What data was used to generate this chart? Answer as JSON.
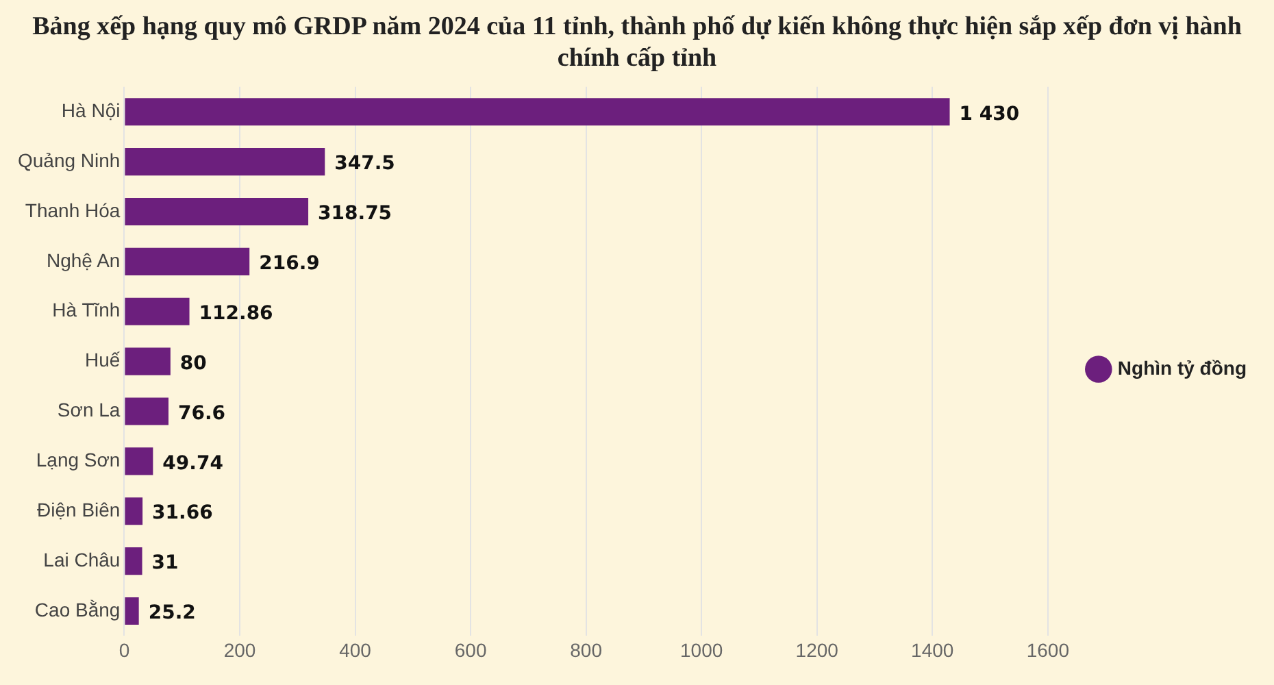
{
  "chart_data": {
    "type": "bar",
    "orientation": "horizontal",
    "title": "Bảng xếp hạng quy mô GRDP năm 2024 của 11 tỉnh, thành phố dự kiến không thực hiện sắp xếp đơn vị hành chính cấp tỉnh",
    "categories": [
      "Hà Nội",
      "Quảng Ninh",
      "Thanh Hóa",
      "Nghệ An",
      "Hà Tĩnh",
      "Huế",
      "Sơn La",
      "Lạng Sơn",
      "Điện Biên",
      "Lai Châu",
      "Cao Bằng"
    ],
    "series": [
      {
        "name": "Nghìn tỷ đồng",
        "color": "#6c1f7d",
        "values": [
          1430,
          347.5,
          318.75,
          216.9,
          112.86,
          80,
          76.6,
          49.74,
          31.66,
          31,
          25.2
        ],
        "value_labels": [
          "1 430",
          "347.5",
          "318.75",
          "216.9",
          "112.86",
          "80",
          "76.6",
          "49.74",
          "31.66",
          "31",
          "25.2"
        ]
      }
    ],
    "xlim": [
      0,
      1600
    ],
    "xticks": [
      0,
      200,
      400,
      600,
      800,
      1000,
      1200,
      1400,
      1600
    ],
    "grid": "x",
    "legend": "right"
  }
}
